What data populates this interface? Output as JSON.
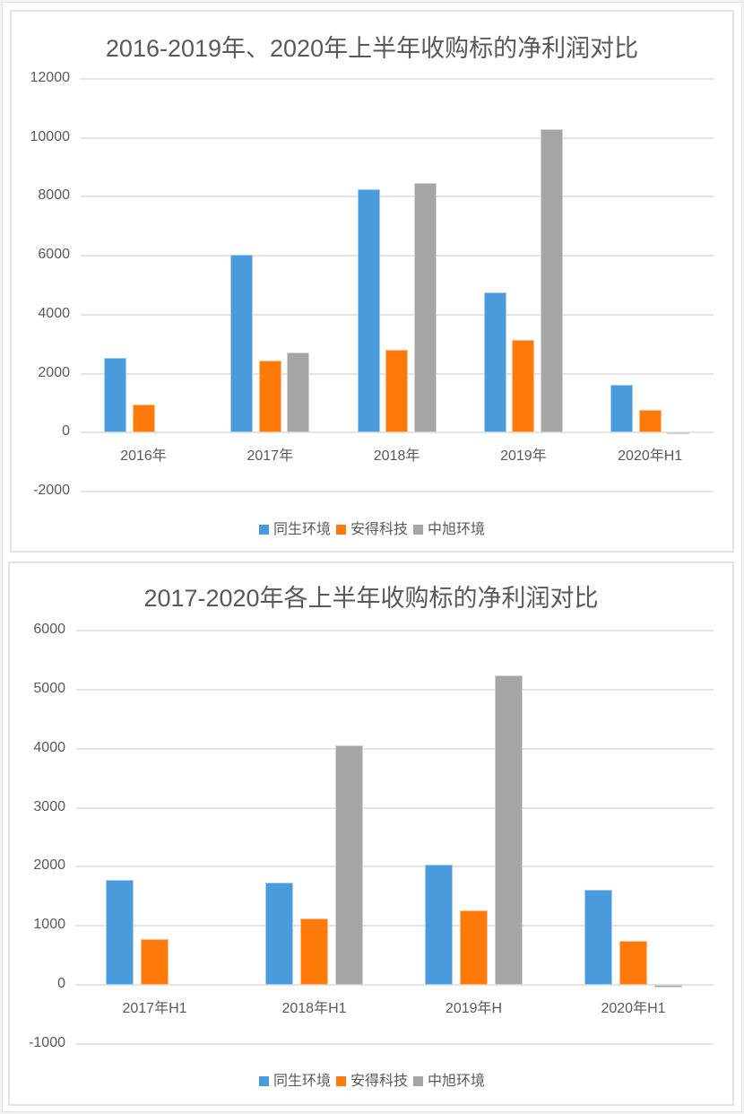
{
  "colors": {
    "tongsheng": "#4a9bdb",
    "ande": "#ff7a0a",
    "zhongxu": "#a5a5a5"
  },
  "chart_data": [
    {
      "type": "bar",
      "title": "2016-2019年、2020年上半年收购标的净利润对比",
      "xlabel": "",
      "ylabel": "",
      "ylim": [
        -2000,
        12000
      ],
      "yticks": [
        "12000",
        "10000",
        "8000",
        "6000",
        "4000",
        "2000",
        "0",
        "-2000"
      ],
      "grid": true,
      "legend_position": "bottom",
      "categories": [
        "2016年",
        "2017年",
        "2018年",
        "2019年",
        "2020年H1"
      ],
      "series": [
        {
          "name": "同生环境",
          "color": "#4a9bdb",
          "values": [
            2550,
            6050,
            8270,
            4750,
            1620
          ]
        },
        {
          "name": "安得科技",
          "color": "#ff7a0a",
          "values": [
            965,
            2430,
            2800,
            3130,
            770
          ]
        },
        {
          "name": "中旭环境",
          "color": "#a5a5a5",
          "values": [
            null,
            2720,
            8470,
            10300,
            -30
          ]
        }
      ]
    },
    {
      "type": "bar",
      "title": "2017-2020年各上半年收购标的净利润对比",
      "xlabel": "",
      "ylabel": "",
      "ylim": [
        -1000,
        6000
      ],
      "yticks": [
        "6000",
        "5000",
        "4000",
        "3000",
        "2000",
        "1000",
        "0",
        "-1000"
      ],
      "grid": true,
      "legend_position": "bottom",
      "categories": [
        "2017年H1",
        "2018年H1",
        "2019年H",
        "2020年H1"
      ],
      "series": [
        {
          "name": "同生环境",
          "color": "#4a9bdb",
          "values": [
            1780,
            1730,
            2030,
            1610
          ]
        },
        {
          "name": "安得科技",
          "color": "#ff7a0a",
          "values": [
            770,
            1120,
            1260,
            750
          ]
        },
        {
          "name": "中旭环境",
          "color": "#a5a5a5",
          "values": [
            null,
            4050,
            5235,
            -50
          ]
        }
      ]
    }
  ]
}
